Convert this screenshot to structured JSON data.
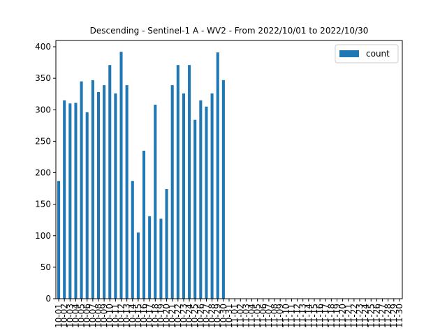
{
  "chart_data": {
    "type": "bar",
    "title": "Descending - Sentinel-1 A - WV2 - From 2022/10/01 to 2022/10/30",
    "xlabel": "",
    "ylabel": "",
    "ylim": [
      0,
      410
    ],
    "yticks": [
      0,
      50,
      100,
      150,
      200,
      250,
      300,
      350,
      400
    ],
    "grid": false,
    "legend_position": "top-right",
    "bar_color": "#1f77b4",
    "categories": [
      "10-01",
      "10-02",
      "10-03",
      "10-04",
      "10-05",
      "10-06",
      "10-07",
      "10-08",
      "10-09",
      "10-10",
      "10-11",
      "10-12",
      "10-13",
      "10-14",
      "10-15",
      "10-16",
      "10-17",
      "10-18",
      "10-19",
      "10-20",
      "10-21",
      "10-22",
      "10-23",
      "10-24",
      "10-25",
      "10-26",
      "10-27",
      "10-28",
      "10-29",
      "10-30",
      "10-31",
      "11-01",
      "11-02",
      "11-03",
      "11-04",
      "11-05",
      "11-06",
      "11-07",
      "11-08",
      "11-09",
      "11-10",
      "11-11",
      "11-12",
      "11-13",
      "11-14",
      "11-15",
      "11-16",
      "11-17",
      "11-18",
      "11-19",
      "11-20",
      "11-21",
      "11-22",
      "11-23",
      "11-24",
      "11-25",
      "11-26",
      "11-27",
      "11-28",
      "11-29",
      "11-30"
    ],
    "series": [
      {
        "name": "count",
        "values": [
          187,
          315,
          310,
          311,
          345,
          296,
          347,
          328,
          339,
          371,
          326,
          392,
          339,
          187,
          105,
          235,
          131,
          308,
          127,
          174,
          339,
          371,
          326,
          371,
          284,
          315,
          305,
          326,
          391,
          347,
          0,
          0,
          0,
          0,
          0,
          0,
          0,
          0,
          0,
          0,
          0,
          0,
          0,
          0,
          0,
          0,
          0,
          0,
          0,
          0,
          0,
          0,
          0,
          0,
          0,
          0,
          0,
          0,
          0,
          0,
          0
        ]
      }
    ]
  }
}
